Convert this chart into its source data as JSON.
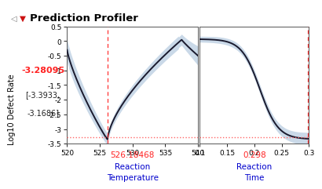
{
  "title": "Prediction Profiler",
  "ylabel": "Log10 Defect Rate",
  "response_value": "-3.28095",
  "response_ci_line1": "[-3.3933,",
  "response_ci_line2": "-3.1686]",
  "panel1": {
    "xlabel_line1": "Reaction",
    "xlabel_line2": "Temperature",
    "xmin": 520,
    "xmax": 540,
    "xticks": [
      520,
      525,
      530,
      535,
      540
    ],
    "xtick_labels": [
      "520",
      "525",
      "530",
      "535",
      "540"
    ],
    "vline_x": 526.18468,
    "vline_label": "526.18468",
    "hline_y": -3.28
  },
  "panel2": {
    "xlabel_line1": "Reaction",
    "xlabel_line2": "Time",
    "xmin": 0.1,
    "xmax": 0.3,
    "xticks": [
      0.1,
      0.15,
      0.2,
      0.25,
      0.3
    ],
    "xtick_labels": [
      "0.1",
      "0.15",
      "0.2",
      "0.25",
      "0.3"
    ],
    "vline_x": 0.298,
    "vline_label": "0.298",
    "hline_y": -3.28
  },
  "ymin": -3.5,
  "ymax": 0.5,
  "yticks": [
    0.5,
    0,
    -0.5,
    -1,
    -1.5,
    -2,
    -2.5,
    -3,
    -3.5
  ],
  "ytick_labels": [
    "0.5",
    "0",
    "-0.5",
    "-1",
    "-1.5",
    "-2",
    "-2.5",
    "-3",
    "-3.5"
  ],
  "bg_color": "#ffffff",
  "header_bg": "#d4d4d4",
  "curve_color": "#1a1a2e",
  "ci_color": "#8aaccc",
  "ci_alpha": 0.45,
  "vline_color": "#ff3333",
  "hline_color": "#ff6666",
  "red_text_color": "#ff2222",
  "dark_text_color": "#222222",
  "blue_text_color": "#0000cc"
}
